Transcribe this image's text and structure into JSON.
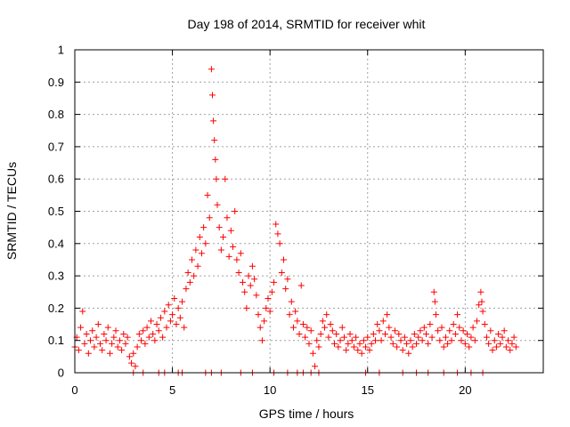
{
  "chart_data": {
    "type": "scatter",
    "title": "Day 198 of 2014, SRMTID for receiver whit",
    "xlabel": "GPS time / hours",
    "ylabel": "SRMTID / TECUs",
    "xlim": [
      0,
      24
    ],
    "ylim": [
      0,
      1
    ],
    "xticks": [
      0,
      5,
      10,
      15,
      20
    ],
    "xtick_labels": [
      "0",
      "5",
      "10",
      "15",
      "20"
    ],
    "yticks": [
      0,
      0.1,
      0.2,
      0.3,
      0.4,
      0.5,
      0.6,
      0.7,
      0.8,
      0.9,
      1
    ],
    "ytick_labels": [
      "0",
      "0.1",
      "0.2",
      "0.3",
      "0.4",
      "0.5",
      "0.6",
      "0.7",
      "0.8",
      "0.9",
      "1"
    ],
    "grid": true,
    "marker": "+",
    "color": "#ff0000",
    "series": [
      {
        "name": "SRMTID",
        "points": [
          [
            0.0,
            0.08
          ],
          [
            0.1,
            0.11
          ],
          [
            0.2,
            0.07
          ],
          [
            0.3,
            0.14
          ],
          [
            0.4,
            0.19
          ],
          [
            0.5,
            0.09
          ],
          [
            0.6,
            0.12
          ],
          [
            0.7,
            0.06
          ],
          [
            0.8,
            0.1
          ],
          [
            0.9,
            0.13
          ],
          [
            1.0,
            0.08
          ],
          [
            1.1,
            0.11
          ],
          [
            1.2,
            0.15
          ],
          [
            1.3,
            0.09
          ],
          [
            1.4,
            0.07
          ],
          [
            1.5,
            0.12
          ],
          [
            1.6,
            0.1
          ],
          [
            1.7,
            0.14
          ],
          [
            1.8,
            0.06
          ],
          [
            1.9,
            0.09
          ],
          [
            2.0,
            0.11
          ],
          [
            2.1,
            0.13
          ],
          [
            2.2,
            0.08
          ],
          [
            2.3,
            0.1
          ],
          [
            2.4,
            0.07
          ],
          [
            2.5,
            0.12
          ],
          [
            2.6,
            0.09
          ],
          [
            2.7,
            0.11
          ],
          [
            2.8,
            0.05
          ],
          [
            2.9,
            0.03
          ],
          [
            3.0,
            0.06
          ],
          [
            3.1,
            0.02
          ],
          [
            3.2,
            0.08
          ],
          [
            3.3,
            0.12
          ],
          [
            3.4,
            0.1
          ],
          [
            3.5,
            0.13
          ],
          [
            3.6,
            0.09
          ],
          [
            3.7,
            0.14
          ],
          [
            3.8,
            0.11
          ],
          [
            3.9,
            0.16
          ],
          [
            4.0,
            0.12
          ],
          [
            4.1,
            0.1
          ],
          [
            4.2,
            0.15
          ],
          [
            4.3,
            0.13
          ],
          [
            4.4,
            0.17
          ],
          [
            4.5,
            0.11
          ],
          [
            4.6,
            0.19
          ],
          [
            4.7,
            0.14
          ],
          [
            4.8,
            0.21
          ],
          [
            4.9,
            0.16
          ],
          [
            5.0,
            0.18
          ],
          [
            5.1,
            0.23
          ],
          [
            5.2,
            0.15
          ],
          [
            5.3,
            0.2
          ],
          [
            5.4,
            0.17
          ],
          [
            5.5,
            0.22
          ],
          [
            5.6,
            0.14
          ],
          [
            5.7,
            0.26
          ],
          [
            5.8,
            0.31
          ],
          [
            5.9,
            0.28
          ],
          [
            6.0,
            0.35
          ],
          [
            6.1,
            0.3
          ],
          [
            6.2,
            0.38
          ],
          [
            6.3,
            0.33
          ],
          [
            6.4,
            0.42
          ],
          [
            6.5,
            0.37
          ],
          [
            6.6,
            0.45
          ],
          [
            6.7,
            0.4
          ],
          [
            6.8,
            0.55
          ],
          [
            6.9,
            0.48
          ],
          [
            7.0,
            0.94
          ],
          [
            7.05,
            0.86
          ],
          [
            7.1,
            0.78
          ],
          [
            7.15,
            0.72
          ],
          [
            7.2,
            0.66
          ],
          [
            7.25,
            0.6
          ],
          [
            7.3,
            0.52
          ],
          [
            7.4,
            0.45
          ],
          [
            7.5,
            0.38
          ],
          [
            7.6,
            0.42
          ],
          [
            7.7,
            0.6
          ],
          [
            7.8,
            0.48
          ],
          [
            7.9,
            0.36
          ],
          [
            8.0,
            0.44
          ],
          [
            8.1,
            0.39
          ],
          [
            8.2,
            0.5
          ],
          [
            8.3,
            0.35
          ],
          [
            8.4,
            0.31
          ],
          [
            8.5,
            0.37
          ],
          [
            8.6,
            0.28
          ],
          [
            8.7,
            0.25
          ],
          [
            8.8,
            0.2
          ],
          [
            8.9,
            0.3
          ],
          [
            9.0,
            0.27
          ],
          [
            9.1,
            0.33
          ],
          [
            9.2,
            0.29
          ],
          [
            9.3,
            0.24
          ],
          [
            9.4,
            0.18
          ],
          [
            9.5,
            0.14
          ],
          [
            9.6,
            0.1
          ],
          [
            9.7,
            0.16
          ],
          [
            9.8,
            0.2
          ],
          [
            9.9,
            0.23
          ],
          [
            10.0,
            0.19
          ],
          [
            10.1,
            0.25
          ],
          [
            10.2,
            0.28
          ],
          [
            10.3,
            0.46
          ],
          [
            10.4,
            0.43
          ],
          [
            10.5,
            0.4
          ],
          [
            10.6,
            0.31
          ],
          [
            10.7,
            0.35
          ],
          [
            10.8,
            0.26
          ],
          [
            10.9,
            0.29
          ],
          [
            11.0,
            0.18
          ],
          [
            11.1,
            0.22
          ],
          [
            11.2,
            0.14
          ],
          [
            11.3,
            0.19
          ],
          [
            11.4,
            0.16
          ],
          [
            11.5,
            0.12
          ],
          [
            11.6,
            0.27
          ],
          [
            11.7,
            0.15
          ],
          [
            11.8,
            0.11
          ],
          [
            11.9,
            0.14
          ],
          [
            12.0,
            0.09
          ],
          [
            12.1,
            0.13
          ],
          [
            12.2,
            0.06
          ],
          [
            12.3,
            0.02
          ],
          [
            12.4,
            0.1
          ],
          [
            12.5,
            0.08
          ],
          [
            12.6,
            0.12
          ],
          [
            12.7,
            0.16
          ],
          [
            12.8,
            0.14
          ],
          [
            12.9,
            0.18
          ],
          [
            13.0,
            0.11
          ],
          [
            13.1,
            0.15
          ],
          [
            13.2,
            0.13
          ],
          [
            13.3,
            0.09
          ],
          [
            13.4,
            0.12
          ],
          [
            13.5,
            0.08
          ],
          [
            13.6,
            0.1
          ],
          [
            13.7,
            0.14
          ],
          [
            13.8,
            0.11
          ],
          [
            13.9,
            0.07
          ],
          [
            14.0,
            0.09
          ],
          [
            14.1,
            0.12
          ],
          [
            14.2,
            0.1
          ],
          [
            14.3,
            0.08
          ],
          [
            14.4,
            0.11
          ],
          [
            14.5,
            0.07
          ],
          [
            14.6,
            0.09
          ],
          [
            14.7,
            0.06
          ],
          [
            14.8,
            0.1
          ],
          [
            14.9,
            0.08
          ],
          [
            15.0,
            0.11
          ],
          [
            15.1,
            0.07
          ],
          [
            15.2,
            0.09
          ],
          [
            15.3,
            0.12
          ],
          [
            15.4,
            0.1
          ],
          [
            15.5,
            0.15
          ],
          [
            15.6,
            0.13
          ],
          [
            15.7,
            0.1
          ],
          [
            15.8,
            0.16
          ],
          [
            15.9,
            0.12
          ],
          [
            16.0,
            0.18
          ],
          [
            16.1,
            0.14
          ],
          [
            16.2,
            0.11
          ],
          [
            16.3,
            0.09
          ],
          [
            16.4,
            0.13
          ],
          [
            16.5,
            0.08
          ],
          [
            16.6,
            0.12
          ],
          [
            16.7,
            0.1
          ],
          [
            16.8,
            0.07
          ],
          [
            16.9,
            0.11
          ],
          [
            17.0,
            0.09
          ],
          [
            17.1,
            0.06
          ],
          [
            17.2,
            0.1
          ],
          [
            17.3,
            0.08
          ],
          [
            17.4,
            0.12
          ],
          [
            17.5,
            0.09
          ],
          [
            17.6,
            0.11
          ],
          [
            17.7,
            0.13
          ],
          [
            17.8,
            0.1
          ],
          [
            17.9,
            0.14
          ],
          [
            18.0,
            0.12
          ],
          [
            18.1,
            0.09
          ],
          [
            18.2,
            0.15
          ],
          [
            18.3,
            0.11
          ],
          [
            18.4,
            0.25
          ],
          [
            18.45,
            0.22
          ],
          [
            18.5,
            0.18
          ],
          [
            18.6,
            0.13
          ],
          [
            18.7,
            0.1
          ],
          [
            18.8,
            0.14
          ],
          [
            18.9,
            0.08
          ],
          [
            19.0,
            0.11
          ],
          [
            19.1,
            0.09
          ],
          [
            19.2,
            0.13
          ],
          [
            19.3,
            0.1
          ],
          [
            19.4,
            0.15
          ],
          [
            19.5,
            0.12
          ],
          [
            19.6,
            0.18
          ],
          [
            19.7,
            0.14
          ],
          [
            19.8,
            0.1
          ],
          [
            19.9,
            0.13
          ],
          [
            20.0,
            0.09
          ],
          [
            20.1,
            0.12
          ],
          [
            20.2,
            0.08
          ],
          [
            20.3,
            0.11
          ],
          [
            20.4,
            0.14
          ],
          [
            20.5,
            0.1
          ],
          [
            20.6,
            0.16
          ],
          [
            20.7,
            0.21
          ],
          [
            20.8,
            0.25
          ],
          [
            20.85,
            0.22
          ],
          [
            20.9,
            0.19
          ],
          [
            21.0,
            0.15
          ],
          [
            21.1,
            0.11
          ],
          [
            21.2,
            0.09
          ],
          [
            21.3,
            0.13
          ],
          [
            21.4,
            0.07
          ],
          [
            21.5,
            0.1
          ],
          [
            21.6,
            0.08
          ],
          [
            21.7,
            0.12
          ],
          [
            21.8,
            0.09
          ],
          [
            21.9,
            0.11
          ],
          [
            22.0,
            0.13
          ],
          [
            22.1,
            0.08
          ],
          [
            22.2,
            0.1
          ],
          [
            22.3,
            0.07
          ],
          [
            22.4,
            0.09
          ],
          [
            22.5,
            0.11
          ],
          [
            22.6,
            0.08
          ],
          [
            3.0,
            0.0
          ],
          [
            3.5,
            0.0
          ],
          [
            4.3,
            0.0
          ],
          [
            4.6,
            0.0
          ],
          [
            5.3,
            0.0
          ],
          [
            5.5,
            0.0
          ],
          [
            6.7,
            0.0
          ],
          [
            7.0,
            0.0
          ],
          [
            7.5,
            0.0
          ],
          [
            8.5,
            0.0
          ],
          [
            9.1,
            0.0
          ],
          [
            10.2,
            0.0
          ],
          [
            10.9,
            0.0
          ],
          [
            11.4,
            0.0
          ],
          [
            11.7,
            0.0
          ],
          [
            12.1,
            0.0
          ],
          [
            12.5,
            0.0
          ],
          [
            14.9,
            0.0
          ],
          [
            15.6,
            0.0
          ],
          [
            16.8,
            0.0
          ],
          [
            17.5,
            0.0
          ],
          [
            18.1,
            0.0
          ],
          [
            18.9,
            0.0
          ],
          [
            19.6,
            0.0
          ],
          [
            20.3,
            0.0
          ],
          [
            20.9,
            0.0
          ]
        ]
      }
    ]
  }
}
